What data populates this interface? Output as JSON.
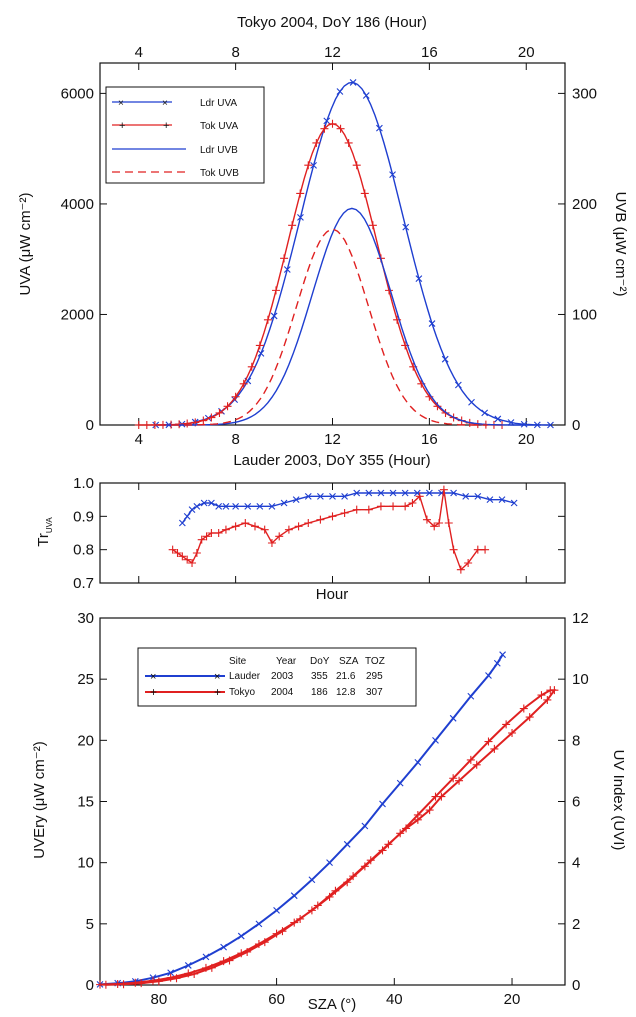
{
  "colors": {
    "blue": "#1f3fd0",
    "red": "#e02020",
    "axis": "#111111"
  },
  "chart_data": [
    {
      "id": "top",
      "type": "line",
      "top_axis_title": "Tokyo 2004, DoY 186 (Hour)",
      "bottom_axis_title": "Lauder 2003, DoY 355 (Hour)",
      "ylabel_left": "UVA (μW cm⁻²)",
      "ylabel_right": "UVB (μW cm⁻²)",
      "xlim": [
        2.4,
        21.6
      ],
      "ylim_left": [
        0,
        6550
      ],
      "ylim_right": [
        0,
        327.5
      ],
      "x_ticks": [
        "4",
        "8",
        "12",
        "16",
        "20"
      ],
      "top_ticks": [
        "4",
        "8",
        "12",
        "16",
        "20"
      ],
      "y_ticks_left": [
        "0",
        "2000",
        "4000",
        "6000"
      ],
      "y_ticks_right": [
        "0",
        "100",
        "200",
        "300"
      ],
      "legend_position": "top-left",
      "series": [
        {
          "name": "Ldr UVA",
          "axis": "left",
          "color": "blue",
          "style": "solid",
          "marker": "x",
          "peak_x": 12.8,
          "peak_y": 6200,
          "start_x": 4.7,
          "end_x": 21.0,
          "width": 3.0
        },
        {
          "name": "Tok UVA",
          "axis": "left",
          "color": "red",
          "style": "solid",
          "marker": "+",
          "peak_x": 12.0,
          "peak_y": 5450,
          "start_x": 4.0,
          "end_x": 19.0,
          "width": 2.6
        },
        {
          "name": "Ldr UVB",
          "axis": "right",
          "color": "blue",
          "style": "solid",
          "marker": "none",
          "peak_x": 12.8,
          "peak_y": 196,
          "start_x": 5.0,
          "end_x": 20.6,
          "width": 2.3
        },
        {
          "name": "Tok UVB",
          "axis": "right",
          "color": "red",
          "style": "dashed",
          "marker": "none",
          "peak_x": 12.0,
          "peak_y": 177,
          "start_x": 4.8,
          "end_x": 18.4,
          "width": 2.1
        }
      ]
    },
    {
      "id": "middle",
      "type": "line",
      "xlabel": "Hour",
      "ylabel": "Tr_UVA",
      "xlim": [
        2.4,
        21.6
      ],
      "ylim": [
        0.7,
        1.0
      ],
      "y_ticks": [
        "0.7",
        "0.8",
        "0.9",
        "1.0"
      ],
      "series": [
        {
          "name": "Lauder",
          "color": "blue",
          "x": [
            5.8,
            6.0,
            6.2,
            6.4,
            6.7,
            7.0,
            7.3,
            7.6,
            8.0,
            8.5,
            9.0,
            9.5,
            10.0,
            10.5,
            11.0,
            11.5,
            12.0,
            12.5,
            13.0,
            13.5,
            14.0,
            14.5,
            15.0,
            15.5,
            16.0,
            16.5,
            17.0,
            17.5,
            18.0,
            18.5,
            19.0,
            19.5
          ],
          "y": [
            0.88,
            0.9,
            0.92,
            0.93,
            0.94,
            0.94,
            0.93,
            0.93,
            0.93,
            0.93,
            0.93,
            0.93,
            0.94,
            0.95,
            0.96,
            0.96,
            0.96,
            0.96,
            0.97,
            0.97,
            0.97,
            0.97,
            0.97,
            0.97,
            0.97,
            0.97,
            0.97,
            0.96,
            0.96,
            0.95,
            0.95,
            0.94
          ]
        },
        {
          "name": "Tokyo",
          "color": "red",
          "x": [
            5.4,
            5.6,
            5.8,
            6.0,
            6.2,
            6.4,
            6.6,
            6.8,
            7.0,
            7.3,
            7.6,
            8.0,
            8.4,
            8.8,
            9.2,
            9.5,
            9.8,
            10.2,
            10.6,
            11.0,
            11.5,
            12.0,
            12.5,
            13.0,
            13.5,
            14.0,
            14.5,
            15.0,
            15.3,
            15.6,
            15.9,
            16.2,
            16.4,
            16.6,
            16.8,
            17.0,
            17.3,
            17.6,
            18.0,
            18.3
          ],
          "y": [
            0.8,
            0.79,
            0.78,
            0.77,
            0.76,
            0.79,
            0.83,
            0.84,
            0.85,
            0.85,
            0.86,
            0.87,
            0.88,
            0.87,
            0.86,
            0.82,
            0.84,
            0.86,
            0.87,
            0.88,
            0.89,
            0.9,
            0.91,
            0.92,
            0.92,
            0.93,
            0.93,
            0.93,
            0.94,
            0.96,
            0.89,
            0.87,
            0.88,
            0.98,
            0.88,
            0.8,
            0.74,
            0.76,
            0.8,
            0.8
          ]
        }
      ]
    },
    {
      "id": "bottom",
      "type": "line",
      "xlabel": "SZA (°)",
      "ylabel_left": "UVEry (μW cm⁻²)",
      "ylabel_right": "UV Index (UVI)",
      "xlim": [
        90,
        11
      ],
      "ylim_left": [
        0,
        30
      ],
      "ylim_right": [
        0,
        12
      ],
      "x_ticks": [
        "80",
        "60",
        "40",
        "20"
      ],
      "y_ticks_left": [
        "0",
        "5",
        "10",
        "15",
        "20",
        "25",
        "30"
      ],
      "y_ticks_right": [
        "0",
        "2",
        "4",
        "6",
        "8",
        "10",
        "12"
      ],
      "legend_position": "top-left",
      "legend_header": [
        "Site",
        "Year",
        "DoY",
        "SZA",
        "TOZ"
      ],
      "series": [
        {
          "name": "Lauder",
          "color": "blue",
          "legend_values": [
            "2003",
            "355",
            "21.6",
            "295"
          ],
          "x": [
            90,
            87,
            84,
            81,
            78,
            75,
            72,
            69,
            66,
            63,
            60,
            57,
            54,
            51,
            48,
            45,
            42,
            39,
            36,
            33,
            30,
            27,
            24,
            22.5,
            21.6
          ],
          "y": [
            0.05,
            0.15,
            0.3,
            0.6,
            1.0,
            1.6,
            2.3,
            3.1,
            4.0,
            5.0,
            6.1,
            7.3,
            8.6,
            10.0,
            11.5,
            13.0,
            14.8,
            16.5,
            18.2,
            20.0,
            21.8,
            23.6,
            25.3,
            26.3,
            27.0
          ]
        },
        {
          "name": "Tokyo",
          "color": "red",
          "legend_values": [
            "2004",
            "186",
            "12.8",
            "307"
          ],
          "x": [
            90,
            87,
            84,
            81,
            78,
            75,
            72,
            69,
            66,
            63,
            60,
            57,
            54,
            51,
            48,
            45,
            42,
            39,
            36,
            33,
            30,
            27,
            24,
            21,
            18,
            15,
            13.5,
            12.8,
            14,
            17,
            20,
            23,
            26,
            29,
            32,
            34,
            36,
            38,
            41,
            44,
            47,
            50,
            53,
            56,
            59,
            62,
            65,
            68,
            71,
            74,
            77,
            80,
            83,
            86,
            89
          ],
          "y": [
            0.03,
            0.08,
            0.18,
            0.35,
            0.6,
            0.95,
            1.4,
            1.95,
            2.6,
            3.35,
            4.2,
            5.1,
            6.1,
            7.2,
            8.4,
            9.7,
            11.0,
            12.4,
            13.9,
            15.4,
            16.9,
            18.4,
            19.9,
            21.3,
            22.6,
            23.7,
            24.1,
            24.1,
            23.3,
            21.9,
            20.6,
            19.3,
            18.0,
            16.7,
            15.4,
            14.3,
            13.5,
            12.8,
            11.5,
            10.2,
            8.9,
            7.7,
            6.5,
            5.4,
            4.4,
            3.5,
            2.7,
            2.0,
            1.4,
            0.9,
            0.55,
            0.3,
            0.15,
            0.06,
            0.02
          ]
        }
      ]
    }
  ]
}
